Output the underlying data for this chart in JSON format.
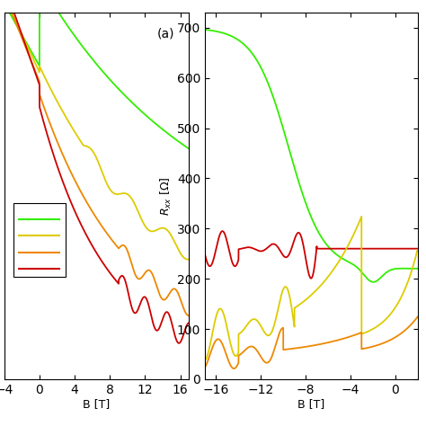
{
  "colors": {
    "green": "#33ee00",
    "yellow": "#ddcc00",
    "orange": "#ee8800",
    "red": "#cc0000"
  },
  "left_panel": {
    "label": "(a)",
    "xlabel": "B [T]",
    "xlim": [
      -4,
      17
    ],
    "xticks": [
      -4,
      0,
      4,
      8,
      12,
      16
    ],
    "ylim": [
      -0.12,
      1.05
    ]
  },
  "right_panel": {
    "ylabel": "R_{xx} [\\Omega]",
    "xlabel": "B [T]",
    "xlim": [
      -17,
      2
    ],
    "xticks": [
      -16,
      -12,
      -8,
      -4,
      0
    ],
    "ylim": [
      0,
      730
    ]
  },
  "bg_color": "#ffffff",
  "linewidth": 1.3
}
